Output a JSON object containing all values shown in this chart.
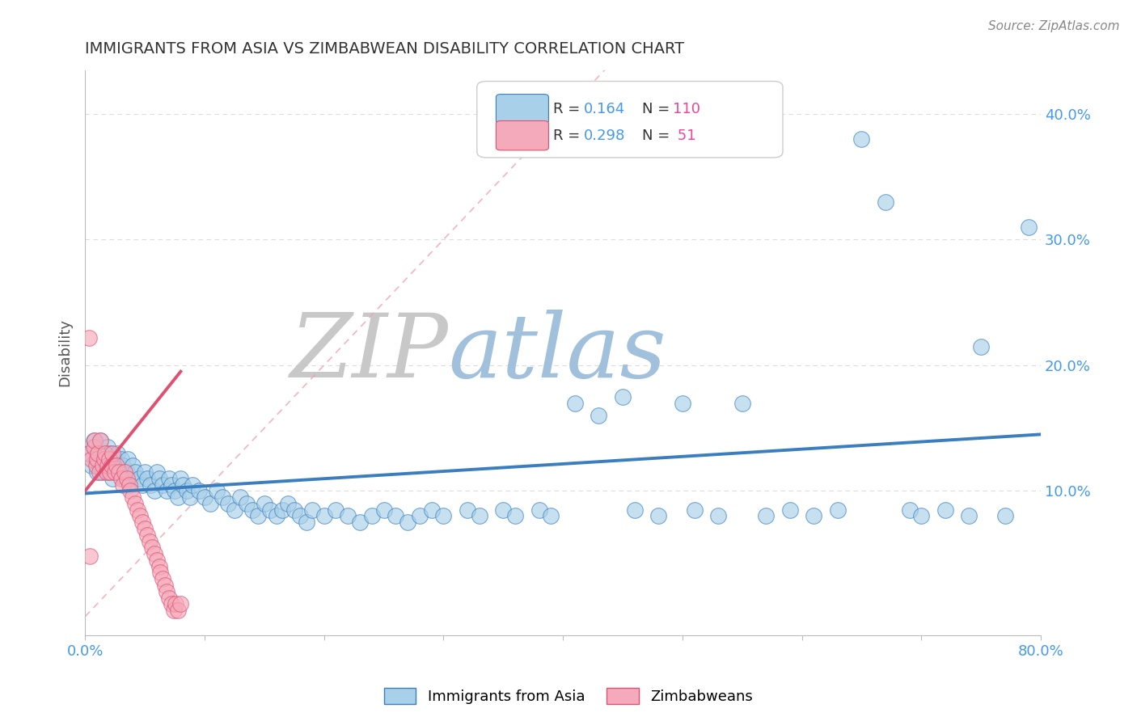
{
  "title": "IMMIGRANTS FROM ASIA VS ZIMBABWEAN DISABILITY CORRELATION CHART",
  "source_text": "Source: ZipAtlas.com",
  "ylabel": "Disability",
  "xlim": [
    0.0,
    0.8
  ],
  "ylim": [
    -0.015,
    0.435
  ],
  "ytick_positions": [
    0.1,
    0.2,
    0.3,
    0.4
  ],
  "ytick_labels": [
    "10.0%",
    "20.0%",
    "30.0%",
    "40.0%"
  ],
  "watermark_zip": "ZIP",
  "watermark_atlas": "atlas",
  "blue_color": "#A8D0E8",
  "pink_color": "#F5AABB",
  "blue_line_color": "#3A7EC0",
  "pink_line_color": "#E05070",
  "diag_color": "#F0A0B0",
  "title_color": "#333333",
  "grid_color": "#DDDDDD",
  "watermark_color_zip": "#CCCCCC",
  "watermark_color_atlas": "#99BBDD",
  "blue_scatter_x": [
    0.003,
    0.005,
    0.007,
    0.008,
    0.009,
    0.01,
    0.01,
    0.012,
    0.013,
    0.015,
    0.015,
    0.017,
    0.018,
    0.019,
    0.02,
    0.02,
    0.021,
    0.022,
    0.023,
    0.025,
    0.025,
    0.027,
    0.028,
    0.03,
    0.03,
    0.032,
    0.033,
    0.035,
    0.036,
    0.038,
    0.04,
    0.042,
    0.045,
    0.048,
    0.05,
    0.052,
    0.055,
    0.058,
    0.06,
    0.062,
    0.065,
    0.068,
    0.07,
    0.072,
    0.075,
    0.078,
    0.08,
    0.082,
    0.085,
    0.088,
    0.09,
    0.095,
    0.1,
    0.105,
    0.11,
    0.115,
    0.12,
    0.125,
    0.13,
    0.135,
    0.14,
    0.145,
    0.15,
    0.155,
    0.16,
    0.165,
    0.17,
    0.175,
    0.18,
    0.185,
    0.19,
    0.2,
    0.21,
    0.22,
    0.23,
    0.24,
    0.25,
    0.26,
    0.27,
    0.28,
    0.29,
    0.3,
    0.32,
    0.33,
    0.35,
    0.36,
    0.38,
    0.39,
    0.41,
    0.43,
    0.45,
    0.46,
    0.48,
    0.5,
    0.51,
    0.53,
    0.55,
    0.57,
    0.59,
    0.61,
    0.63,
    0.65,
    0.67,
    0.69,
    0.7,
    0.72,
    0.74,
    0.75,
    0.77,
    0.79
  ],
  "blue_scatter_y": [
    0.13,
    0.12,
    0.14,
    0.135,
    0.125,
    0.115,
    0.13,
    0.12,
    0.14,
    0.125,
    0.115,
    0.13,
    0.12,
    0.135,
    0.125,
    0.115,
    0.13,
    0.12,
    0.11,
    0.125,
    0.115,
    0.13,
    0.12,
    0.125,
    0.115,
    0.12,
    0.11,
    0.115,
    0.125,
    0.11,
    0.12,
    0.115,
    0.11,
    0.105,
    0.115,
    0.11,
    0.105,
    0.1,
    0.115,
    0.11,
    0.105,
    0.1,
    0.11,
    0.105,
    0.1,
    0.095,
    0.11,
    0.105,
    0.1,
    0.095,
    0.105,
    0.1,
    0.095,
    0.09,
    0.1,
    0.095,
    0.09,
    0.085,
    0.095,
    0.09,
    0.085,
    0.08,
    0.09,
    0.085,
    0.08,
    0.085,
    0.09,
    0.085,
    0.08,
    0.075,
    0.085,
    0.08,
    0.085,
    0.08,
    0.075,
    0.08,
    0.085,
    0.08,
    0.075,
    0.08,
    0.085,
    0.08,
    0.085,
    0.08,
    0.085,
    0.08,
    0.085,
    0.08,
    0.17,
    0.16,
    0.175,
    0.085,
    0.08,
    0.17,
    0.085,
    0.08,
    0.17,
    0.08,
    0.085,
    0.08,
    0.085,
    0.38,
    0.33,
    0.085,
    0.08,
    0.085,
    0.08,
    0.215,
    0.08,
    0.31
  ],
  "pink_scatter_x": [
    0.003,
    0.005,
    0.007,
    0.008,
    0.009,
    0.01,
    0.011,
    0.012,
    0.013,
    0.015,
    0.016,
    0.017,
    0.018,
    0.019,
    0.02,
    0.021,
    0.022,
    0.023,
    0.025,
    0.026,
    0.028,
    0.03,
    0.032,
    0.033,
    0.035,
    0.037,
    0.038,
    0.04,
    0.042,
    0.044,
    0.046,
    0.048,
    0.05,
    0.052,
    0.054,
    0.056,
    0.058,
    0.06,
    0.062,
    0.063,
    0.065,
    0.067,
    0.068,
    0.07,
    0.072,
    0.074,
    0.076,
    0.078,
    0.08,
    0.003,
    0.004
  ],
  "pink_scatter_y": [
    0.13,
    0.125,
    0.135,
    0.14,
    0.12,
    0.125,
    0.13,
    0.115,
    0.14,
    0.12,
    0.125,
    0.13,
    0.115,
    0.12,
    0.125,
    0.115,
    0.12,
    0.13,
    0.115,
    0.12,
    0.115,
    0.11,
    0.105,
    0.115,
    0.11,
    0.105,
    0.1,
    0.095,
    0.09,
    0.085,
    0.08,
    0.075,
    0.07,
    0.065,
    0.06,
    0.055,
    0.05,
    0.045,
    0.04,
    0.035,
    0.03,
    0.025,
    0.02,
    0.015,
    0.01,
    0.005,
    0.01,
    0.005,
    0.01,
    0.222,
    0.048
  ],
  "blue_trend_x": [
    0.0,
    0.8
  ],
  "blue_trend_y": [
    0.098,
    0.145
  ],
  "pink_trend_x": [
    0.0,
    0.08
  ],
  "pink_trend_y": [
    0.1,
    0.195
  ]
}
